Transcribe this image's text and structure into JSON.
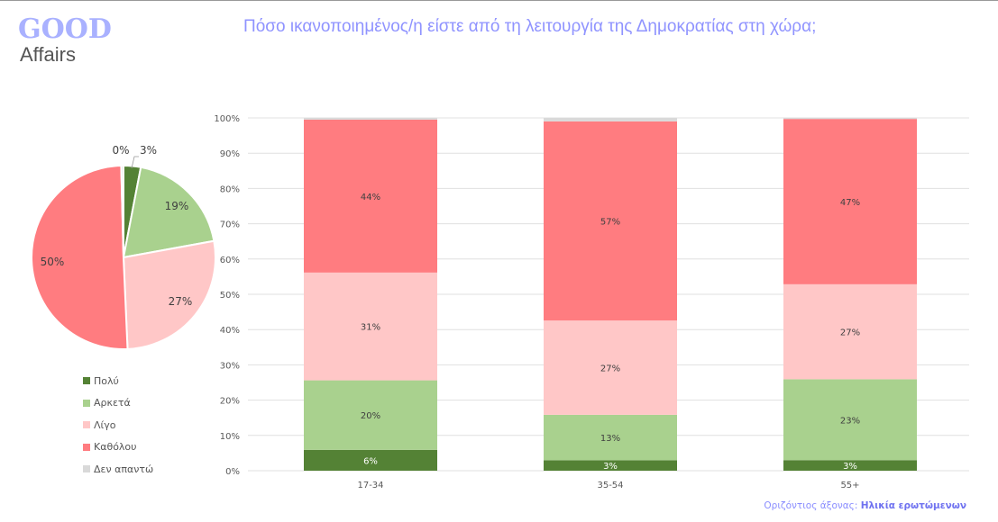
{
  "logo": {
    "line1": "GOOD",
    "line2": "Affairs"
  },
  "title": "Πόσο ικανοποιημένος/η είστε από τη λειτουργία της Δημοκρατίας στη χώρα;",
  "caption": {
    "prefix": "Οριζόντιος άξονας:",
    "value": "Ηλικία ερωτώμενων"
  },
  "colors": {
    "Πολύ": "#548235",
    "Αρκετά": "#a9d18e",
    "Λίγο": "#ffc7c7",
    "Καθόλου": "#ff7c80",
    "Δεν απαντώ": "#d9d9d9"
  },
  "chart_data": [
    {
      "type": "pie",
      "categories": [
        "Πολύ",
        "Αρκετά",
        "Λίγο",
        "Καθόλου",
        "Δεν απαντώ"
      ],
      "values": [
        3,
        19,
        27,
        50,
        0
      ],
      "labels": [
        "3%",
        "19%",
        "27%",
        "50%",
        "0%"
      ],
      "legend": [
        "Πολύ",
        "Αρκετά",
        "Λίγο",
        "Καθόλου",
        "Δεν απαντώ"
      ],
      "legend_position": "bottom"
    },
    {
      "type": "bar",
      "stacked": "100%",
      "categories": [
        "17-34",
        "35-54",
        "55+"
      ],
      "series": [
        {
          "name": "Πολύ",
          "values": [
            6,
            3,
            3
          ],
          "labels": [
            "6%",
            "3%",
            "3%"
          ]
        },
        {
          "name": "Αρκετά",
          "values": [
            20,
            13,
            23
          ],
          "labels": [
            "20%",
            "13%",
            "23%"
          ]
        },
        {
          "name": "Λίγο",
          "values": [
            31,
            27,
            27
          ],
          "labels": [
            "31%",
            "27%",
            "27%"
          ]
        },
        {
          "name": "Καθόλου",
          "values": [
            44,
            57,
            47
          ],
          "labels": [
            "44%",
            "57%",
            "47%"
          ]
        },
        {
          "name": "Δεν απαντώ",
          "values": [
            0.5,
            1,
            0.3
          ],
          "labels": [
            "",
            "",
            ""
          ]
        }
      ],
      "yticks": [
        "0%",
        "10%",
        "20%",
        "30%",
        "40%",
        "50%",
        "60%",
        "70%",
        "80%",
        "90%",
        "100%"
      ],
      "ylim": [
        0,
        100
      ],
      "grid": true,
      "xlabel": "Ηλικία ερωτώμενων"
    }
  ]
}
